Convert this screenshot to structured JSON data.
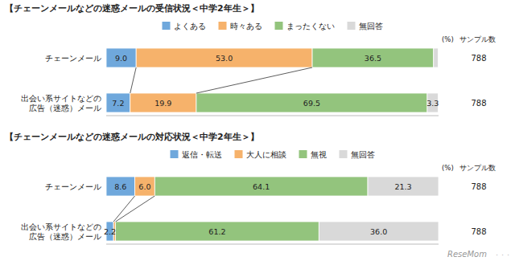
{
  "chart_data": [
    {
      "type": "bar",
      "orientation": "horizontal",
      "stacked": true,
      "title": "【チェーンメールなどの迷惑メールの受信状況＜中学2年生＞】",
      "categories": [
        "チェーンメール",
        "出会い系サイトなどの\n広告（迷惑）メール"
      ],
      "series": [
        {
          "name": "よくある",
          "color": "#6fa8dc",
          "values": [
            9.0,
            7.2
          ],
          "value_labels": [
            "9.0",
            "7.2"
          ]
        },
        {
          "name": "時々ある",
          "color": "#f6b26b",
          "values": [
            53.0,
            19.9
          ],
          "value_labels": [
            "53.0",
            "19.9"
          ]
        },
        {
          "name": "まったくない",
          "color": "#93c47d",
          "values": [
            36.5,
            69.5
          ],
          "value_labels": [
            "36.5",
            "69.5"
          ]
        },
        {
          "name": "無回答",
          "color": "#d9d9d9",
          "values": [
            1.4,
            3.3
          ],
          "value_labels": [
            null,
            "3.3"
          ]
        }
      ],
      "xlim": [
        0,
        100
      ],
      "data_labels": true,
      "tick_labels": "y",
      "legend": "top",
      "grid": false,
      "annotations": [
        "(%)",
        "サンプル数"
      ],
      "sample_sizes": [
        788,
        788
      ]
    },
    {
      "type": "bar",
      "orientation": "horizontal",
      "stacked": true,
      "title": "【チェーンメールなどの迷惑メールの対応状況＜中学2年生＞】",
      "categories": [
        "チェーンメール",
        "出会い系サイトなどの\n広告（迷惑）メール"
      ],
      "series": [
        {
          "name": "返信・転送",
          "color": "#6fa8dc",
          "values": [
            8.6,
            2.2
          ],
          "value_labels": [
            "8.6",
            "2.2"
          ]
        },
        {
          "name": "大人に相談",
          "color": "#f6b26b",
          "values": [
            6.0,
            0.6
          ],
          "value_labels": [
            "6.0",
            null
          ]
        },
        {
          "name": "無視",
          "color": "#93c47d",
          "values": [
            64.1,
            61.2
          ],
          "value_labels": [
            "64.1",
            "61.2"
          ]
        },
        {
          "name": "無回答",
          "color": "#d9d9d9",
          "values": [
            21.3,
            36.0
          ],
          "value_labels": [
            "21.3",
            "36.0"
          ]
        }
      ],
      "xlim": [
        0,
        100
      ],
      "data_labels": true,
      "tick_labels": "y",
      "legend": "top",
      "grid": false,
      "annotations": [
        "(%)",
        "サンプル数"
      ],
      "sample_sizes": [
        788,
        788
      ]
    }
  ],
  "annotations": [
    "ReseMom",
    "・・・"
  ]
}
